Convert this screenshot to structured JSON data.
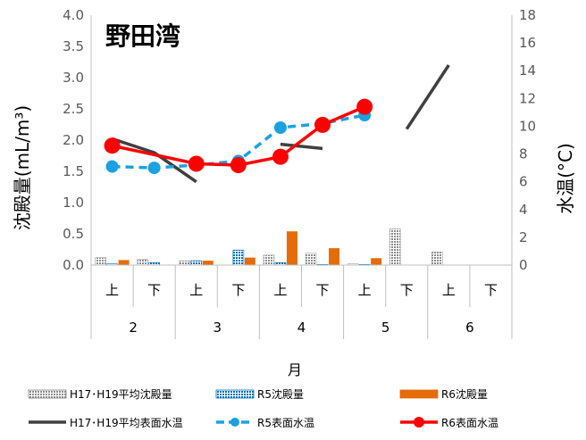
{
  "chart_data": {
    "type": "bar+line",
    "title": "野田湾",
    "xlabel": "月",
    "ylabel": "沈殿量(mL/m³)",
    "y2label": "水温(°C)",
    "ylim": [
      0,
      4.0
    ],
    "y2lim": [
      0,
      18
    ],
    "yticks": [
      "0.0",
      "0.5",
      "1.0",
      "1.5",
      "2.0",
      "2.5",
      "3.0",
      "3.5",
      "4.0"
    ],
    "y2ticks": [
      "0",
      "2",
      "4",
      "6",
      "8",
      "10",
      "12",
      "14",
      "16",
      "18"
    ],
    "categories": [
      "上",
      "下",
      "上",
      "下",
      "上",
      "下",
      "上",
      "下",
      "上",
      "下"
    ],
    "months": [
      "2",
      "3",
      "4",
      "5",
      "6"
    ],
    "bar_series": [
      {
        "name": "H17･H19平均沈殿量",
        "color": "#a6a6a6",
        "values": [
          0.12,
          0.09,
          0.07,
          null,
          0.16,
          0.19,
          0.02,
          0.58,
          0.21,
          null
        ]
      },
      {
        "name": "R5沈殿量",
        "color": "#0070c0",
        "values": [
          0.02,
          0.04,
          0.07,
          0.24,
          0.04,
          0.01,
          0.01,
          null,
          null,
          null
        ]
      },
      {
        "name": "R6沈殿量",
        "color": "#e46c0a",
        "values": [
          0.08,
          null,
          0.07,
          0.12,
          0.54,
          0.27,
          0.11,
          null,
          null,
          null
        ]
      }
    ],
    "line_series": [
      {
        "name": "H17･H19平均表面水温",
        "color": "#404040",
        "segments": [
          [
            [
              0,
              9.1
            ],
            [
              1,
              8.1
            ],
            [
              2,
              6.0
            ]
          ],
          [
            [
              4,
              8.7
            ],
            [
              5,
              8.4
            ]
          ],
          [
            [
              7,
              9.8
            ],
            [
              8,
              14.4
            ]
          ]
        ]
      },
      {
        "name": "R5表面水温",
        "color": "#1ba1e2",
        "values": [
          7.1,
          7.0,
          7.2,
          7.5,
          9.9,
          10.2,
          10.8,
          null,
          null,
          null
        ]
      },
      {
        "name": "R6表面水温",
        "color": "#ff0000",
        "values": [
          8.6,
          null,
          7.3,
          7.2,
          7.8,
          10.1,
          11.4,
          null,
          null,
          null
        ]
      }
    ],
    "legend": {
      "row1": [
        "H17･H19平均沈殿量",
        "R5沈殿量",
        "R6沈殿量"
      ],
      "row2": [
        "H17･H19平均表面水温",
        "R5表面水温",
        "R6表面水温"
      ],
      "placement": "bottom"
    }
  }
}
